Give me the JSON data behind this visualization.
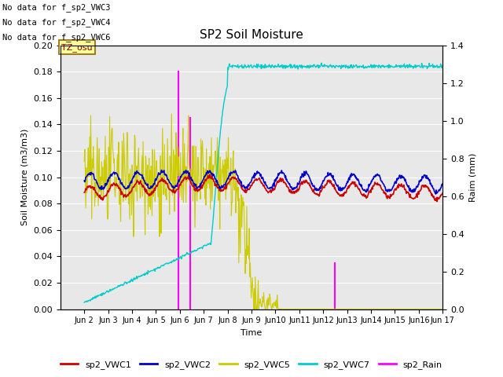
{
  "title": "SP2 Soil Moisture",
  "xlabel": "Time",
  "ylabel_left": "Soil Moisture (m3/m3)",
  "ylabel_right": "Raim (mm)",
  "no_data_texts": [
    "No data for f_sp2_VWC3",
    "No data for f_sp2_VWC4",
    "No data for f_sp2_VWC6"
  ],
  "tz_label": "TZ_osu",
  "ylim_left": [
    0.0,
    0.2
  ],
  "ylim_right": [
    0.0,
    1.4
  ],
  "bg_color": "#e8e8e8",
  "colors": {
    "VWC1": "#cc0000",
    "VWC2": "#0000cc",
    "VWC5": "#cccc00",
    "VWC7": "#00cccc",
    "Rain": "#ff00ff"
  },
  "xtick_labels": [
    "Jun 2",
    "Jun 3",
    "Jun 4",
    "Jun 5",
    "Jun 6",
    "Jun 7",
    "Jun 8",
    "Jun 9",
    "Jun 10",
    "Jun 11",
    "Jun 12",
    "Jun 13",
    "Jun 14",
    "Jun 15",
    "Jun 16",
    "Jun 17"
  ],
  "xtick_labels_display": [
    "Jun 2",
    "Jun 3",
    "Jun 4",
    "Jun 5",
    "Jun 6",
    "Jun 7",
    "Jun 8",
    "Jun 9",
    "Jun10",
    "Jun11",
    "Jun12",
    "Jun13",
    "Jun14",
    "Jun15",
    "Jun16",
    "Jun 17"
  ],
  "legend_entries": [
    "sp2_VWC1",
    "sp2_VWC2",
    "sp2_VWC5",
    "sp2_VWC7",
    "sp2_Rain"
  ],
  "legend_colors": [
    "#cc0000",
    "#0000cc",
    "#cccc00",
    "#00cccc",
    "#ff00ff"
  ],
  "figsize": [
    6.4,
    4.8
  ],
  "dpi": 100
}
